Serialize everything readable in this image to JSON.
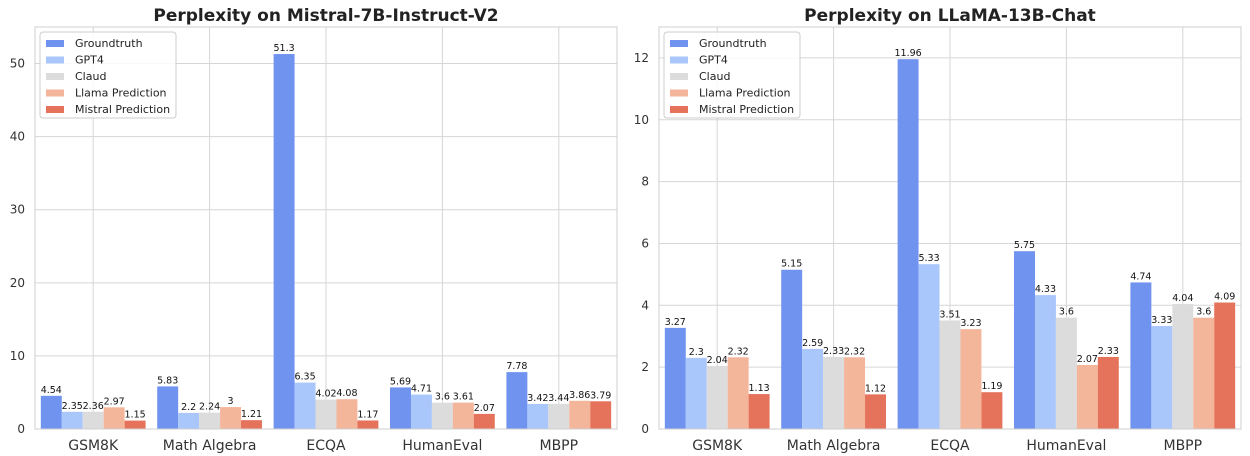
{
  "colors": {
    "Groundtruth": "#6f93ef",
    "GPT4": "#aac7fb",
    "Claud": "#dcdcdc",
    "Llama Prediction": "#f4b69a",
    "Mistral Prediction": "#e5735c"
  },
  "chart_data": [
    {
      "type": "bar",
      "title": "Perplexity on Mistral-7B-Instruct-V2",
      "xlabel": "",
      "ylabel": "",
      "ylim": [
        0,
        55
      ],
      "yticks": [
        0,
        10,
        20,
        30,
        40,
        50
      ],
      "legend_position": "top-left",
      "grid": true,
      "categories": [
        "GSM8K",
        "Math Algebra",
        "ECQA",
        "HumanEval",
        "MBPP"
      ],
      "series": [
        {
          "name": "Groundtruth",
          "values": [
            4.54,
            5.83,
            51.3,
            5.69,
            7.78
          ],
          "labels": [
            "4.54",
            "5.83",
            "51.3",
            "5.69",
            "7.78"
          ]
        },
        {
          "name": "GPT4",
          "values": [
            2.35,
            2.2,
            6.35,
            4.71,
            3.42
          ],
          "labels": [
            "2.35",
            "2.2",
            "6.35",
            "4.71",
            "3.42"
          ]
        },
        {
          "name": "Claud",
          "values": [
            2.36,
            2.24,
            4.02,
            3.6,
            3.44
          ],
          "labels": [
            "2.36",
            "2.24",
            "4.02",
            "3.6",
            "3.44"
          ]
        },
        {
          "name": "Llama Prediction",
          "values": [
            2.97,
            3,
            4.08,
            3.61,
            3.86
          ],
          "labels": [
            "2.97",
            "3",
            "4.08",
            "3.61",
            "3.86"
          ]
        },
        {
          "name": "Mistral Prediction",
          "values": [
            1.15,
            1.21,
            1.17,
            2.07,
            3.79
          ],
          "labels": [
            "1.15",
            "1.21",
            "1.17",
            "2.07",
            "3.79"
          ]
        }
      ]
    },
    {
      "type": "bar",
      "title": "Perplexity on LLaMA-13B-Chat",
      "xlabel": "",
      "ylabel": "",
      "ylim": [
        0,
        13
      ],
      "yticks": [
        0,
        2,
        4,
        6,
        8,
        10,
        12
      ],
      "legend_position": "top-left",
      "grid": true,
      "categories": [
        "GSM8K",
        "Math Algebra",
        "ECQA",
        "HumanEval",
        "MBPP"
      ],
      "series": [
        {
          "name": "Groundtruth",
          "values": [
            3.27,
            5.15,
            11.96,
            5.75,
            4.74
          ],
          "labels": [
            "3.27",
            "5.15",
            "11.96",
            "5.75",
            "4.74"
          ]
        },
        {
          "name": "GPT4",
          "values": [
            2.3,
            2.59,
            5.33,
            4.33,
            3.33
          ],
          "labels": [
            "2.3",
            "2.59",
            "5.33",
            "4.33",
            "3.33"
          ]
        },
        {
          "name": "Claud",
          "values": [
            2.04,
            2.33,
            3.51,
            3.6,
            4.04
          ],
          "labels": [
            "2.04",
            "2.33",
            "3.51",
            "3.6",
            "4.04"
          ]
        },
        {
          "name": "Llama Prediction",
          "values": [
            2.32,
            2.32,
            3.23,
            2.07,
            3.6
          ],
          "labels": [
            "2.32",
            "2.32",
            "3.23",
            "2.07",
            "3.6"
          ]
        },
        {
          "name": "Mistral Prediction",
          "values": [
            1.13,
            1.12,
            1.19,
            2.33,
            4.09
          ],
          "labels": [
            "1.13",
            "1.12",
            "1.19",
            "2.33",
            "4.09"
          ]
        }
      ]
    }
  ]
}
